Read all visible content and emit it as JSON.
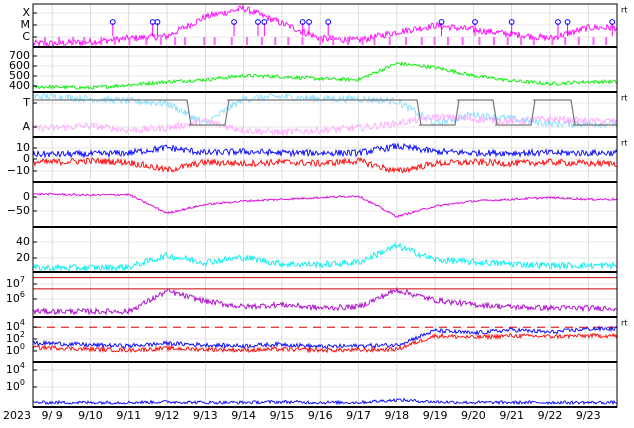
{
  "chart_data": {
    "type": "line",
    "x_axis": {
      "year_label": "2023",
      "tick_labels": [
        "9/ 9",
        "9/10",
        "9/11",
        "9/12",
        "9/13",
        "9/14",
        "9/15",
        "9/16",
        "9/17",
        "9/18",
        "9/19",
        "9/20",
        "9/21",
        "9/22",
        "9/23"
      ],
      "range": [
        "2023-09-08T12:00",
        "2023-09-23T18:00"
      ]
    },
    "panels": [
      {
        "id": "xmc",
        "tick_labels": [
          "X",
          "M",
          "C"
        ],
        "corner_label": "rt",
        "series": [
          {
            "color": "#ff00ff",
            "style": "line",
            "values": [
              0.08,
              0.12,
              0.2,
              0.25,
              0.7,
              0.9,
              0.55,
              0.2,
              0.15,
              0.35,
              0.5,
              0.4,
              0.3,
              0.2,
              0.45
            ]
          }
        ],
        "markers": {
          "color": "#0000ff",
          "x": [
            "2023-09-10T14:00",
            "2023-09-11T15:00",
            "2023-09-11T18:00",
            "2023-09-13T18:00",
            "2023-09-14T09:00",
            "2023-09-14T13:00",
            "2023-09-15T13:00",
            "2023-09-15T17:00",
            "2023-09-16T05:00",
            "2023-09-19T04:00",
            "2023-09-20T01:00",
            "2023-09-21T00:00",
            "2023-09-22T05:00",
            "2023-09-22T11:00",
            "2023-09-23T15:00"
          ]
        }
      },
      {
        "id": "solar-wind-speed",
        "tick_labels": [
          "700",
          "600",
          "500",
          "400"
        ],
        "ylim": [
          320,
          760
        ],
        "series": [
          {
            "color": "#00ee00",
            "style": "line",
            "values": [
              370,
              360,
              390,
              420,
              440,
              480,
              470,
              450,
              440,
              600,
              560,
              480,
              430,
              400,
              420
            ]
          }
        ]
      },
      {
        "id": "imf-sector",
        "tick_labels": [
          "T",
          "A"
        ],
        "corner_label": "rt",
        "series": [
          {
            "color": "#88ddff",
            "style": "line",
            "values": [
              0.9,
              0.85,
              0.8,
              0.75,
              0.3,
              0.85,
              0.9,
              0.85,
              0.85,
              0.8,
              0.3,
              0.5,
              0.4,
              0.3,
              0.3
            ]
          },
          {
            "color": "#ffaaff",
            "style": "line",
            "values": [
              0.2,
              0.25,
              0.15,
              0.2,
              0.35,
              0.15,
              0.1,
              0.15,
              0.2,
              0.3,
              0.45,
              0.4,
              0.35,
              0.4,
              0.35
            ]
          },
          {
            "color": "#777777",
            "style": "step",
            "values": [
              1,
              1,
              1,
              1,
              0,
              1,
              1,
              1,
              1,
              1,
              0,
              1,
              0,
              1,
              0
            ]
          }
        ]
      },
      {
        "id": "imf-bz",
        "tick_labels": [
          "10",
          "0",
          "−10"
        ],
        "corner_label": "rt",
        "ylim": [
          -17,
          17
        ],
        "series": [
          {
            "color": "#0000ff",
            "style": "line",
            "values": [
              4,
              4,
              5,
              9,
              5,
              6,
              5,
              5,
              5,
              10,
              6,
              5,
              5,
              5,
              5
            ]
          },
          {
            "color": "#ff0000",
            "style": "line",
            "values": [
              -2,
              -1,
              -2,
              -8,
              -2,
              -3,
              -2,
              -3,
              -1,
              -9,
              -3,
              -2,
              -3,
              -2,
              -3
            ]
          }
        ]
      },
      {
        "id": "dst",
        "tick_labels": [
          "0",
          "−50"
        ],
        "ylim": [
          -100,
          30
        ],
        "series": [
          {
            "color": "#dd00dd",
            "style": "line",
            "values": [
              -5,
              -8,
              -6,
              -60,
              -35,
              -25,
              -20,
              -15,
              -10,
              -70,
              -40,
              -25,
              -20,
              -15,
              -20
            ]
          }
        ]
      },
      {
        "id": "kp",
        "tick_labels": [
          "40",
          "20"
        ],
        "ylim": [
          0,
          55
        ],
        "series": [
          {
            "color": "#00eeee",
            "style": "line",
            "values": [
              5,
              5,
              6,
              20,
              12,
              18,
              10,
              9,
              12,
              32,
              15,
              12,
              10,
              8,
              8
            ]
          }
        ]
      },
      {
        "id": "electron-flux",
        "tick_labels": [
          "10^7",
          "10^6"
        ],
        "ylim_log10": [
          3.5,
          7.5
        ],
        "thresholds": {
          "color": "#cc0000",
          "values_log10": [
            7,
            6
          ]
        },
        "series": [
          {
            "color": "#aa00cc",
            "style": "line",
            "values_log10": [
              4.0,
              4.0,
              4.0,
              5.8,
              4.9,
              4.4,
              4.6,
              4.3,
              4.4,
              5.9,
              5.0,
              4.6,
              4.4,
              4.3,
              4.3
            ]
          }
        ]
      },
      {
        "id": "proton-flux",
        "tick_labels": [
          "10^4",
          "10^2",
          "10^0"
        ],
        "corner_label": "rt",
        "ylim_log10": [
          -0.5,
          4.8
        ],
        "thresholds": {
          "color": "#dd0000",
          "values_log10": [
            3.6
          ]
        },
        "series": [
          {
            "color": "#0000ff",
            "style": "line",
            "values_log10": [
              1.7,
              1.5,
              1.4,
              1.7,
              1.5,
              1.4,
              1.6,
              1.3,
              1.4,
              1.5,
              3.2,
              2.9,
              3.3,
              3.0,
              3.4
            ]
          },
          {
            "color": "#ff0000",
            "style": "line",
            "values_log10": [
              1.2,
              1.0,
              0.9,
              1.1,
              1.0,
              0.9,
              1.0,
              0.9,
              0.9,
              1.0,
              2.6,
              2.4,
              2.6,
              2.5,
              2.6
            ]
          }
        ]
      },
      {
        "id": "neutron",
        "tick_labels": [
          "10^4",
          "10^0"
        ],
        "ylim_log10": [
          -2,
          5
        ],
        "series": [
          {
            "color": "#0000ff",
            "style": "line",
            "values_log10": [
              -1.3,
              -1.3,
              -1.3,
              -1.2,
              -1.3,
              -1.3,
              -1.2,
              -1.3,
              -1.3,
              -0.9,
              -1.2,
              -1.3,
              -1.3,
              -1.3,
              -1.3
            ]
          }
        ]
      }
    ],
    "grid": true
  }
}
